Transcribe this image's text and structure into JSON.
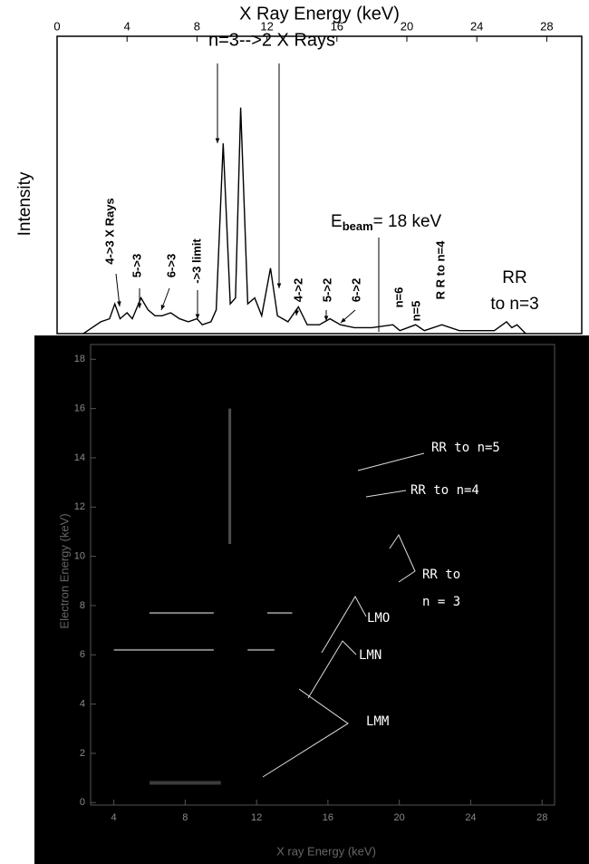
{
  "chart_data": [
    {
      "type": "line",
      "x_label": "X Ray Energy (keV)",
      "y_label": "Intensity",
      "xlim": [
        0,
        30
      ],
      "xticks": [
        0,
        4,
        8,
        12,
        16,
        20,
        24,
        28
      ],
      "ylim": [
        0,
        100
      ],
      "color": "#000000",
      "x": [
        1.5,
        2,
        2.5,
        3.0,
        3.3,
        3.6,
        4.0,
        4.3,
        4.8,
        5.2,
        5.6,
        6.0,
        6.5,
        7.0,
        7.5,
        8.0,
        8.3,
        8.8,
        9.1,
        9.5,
        9.9,
        10.2,
        10.5,
        10.9,
        11.3,
        11.7,
        12.2,
        12.6,
        13.2,
        13.8,
        14.3,
        15.0,
        15.6,
        16.2,
        17,
        18,
        19.2,
        19.6,
        20.5,
        21,
        22,
        23,
        25,
        25.7,
        26,
        26.3,
        26.8
      ],
      "values": [
        0,
        2,
        4,
        5,
        10,
        5,
        7,
        5,
        12,
        8,
        6,
        6,
        7,
        5,
        4,
        5,
        3,
        4,
        8,
        64,
        10,
        12,
        76,
        10,
        12,
        6,
        22,
        6,
        4,
        9,
        3,
        3,
        5,
        3,
        2,
        2,
        3,
        1,
        3,
        1,
        3,
        1,
        1,
        4,
        2,
        3,
        0
      ],
      "annotations": {
        "n32": "n=3-->2  X Rays",
        "l43": "4->3 X Rays",
        "l53": "5->3",
        "l63": "6->3",
        "lim3": "->3 limit",
        "l42": "4->2",
        "l52": "5->2",
        "l62": "6->2",
        "n6": "n=6",
        "n5": "n=5",
        "rr4": "R R to n=4",
        "beam_main": "E",
        "beam_sub": "beam",
        "beam_rest": "= 18 keV",
        "rr3a": "RR",
        "rr3b": "to n=3"
      }
    },
    {
      "type": "image",
      "x_label": "X ray Energy (keV)",
      "y_label": "Electron Energy (keV)",
      "xlim": [
        2.7,
        28.7
      ],
      "xticks": [
        4,
        8,
        12,
        16,
        20,
        24,
        28
      ],
      "ylim": [
        -0.1,
        18.6
      ],
      "yticks": [
        0,
        2,
        4,
        6,
        8,
        10,
        12,
        14,
        16,
        18
      ],
      "annotations": {
        "rr5": "RR to n=5",
        "rr4": "RR to n=4",
        "rr3a": "RR to",
        "rr3b": "n = 3",
        "lmo": "LMO",
        "lmn": "LMN",
        "lmm": "LMM"
      }
    }
  ]
}
